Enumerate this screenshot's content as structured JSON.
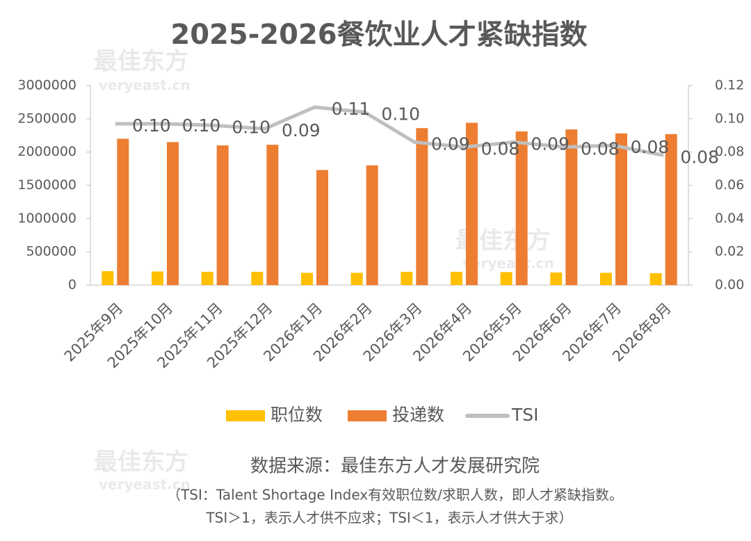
{
  "chart_data": {
    "type": "bar",
    "title": "2025-2026餐饮业人才紧缺指数",
    "watermark": "最佳东方",
    "watermark_url": "veryeast.cn",
    "categories": [
      "2025年9月",
      "2025年10月",
      "2025年11月",
      "2025年12月",
      "2026年1月",
      "2026年2月",
      "2026年3月",
      "2026年4月",
      "2026年5月",
      "2026年6月",
      "2026年7月",
      "2026年8月"
    ],
    "series": [
      {
        "name": "职位数",
        "color": "#ffc000",
        "values": [
          210000,
          205000,
          200000,
          200000,
          185000,
          185000,
          200000,
          200000,
          195000,
          190000,
          185000,
          180000
        ]
      },
      {
        "name": "投递数",
        "color": "#ed7d31",
        "values": [
          2200000,
          2150000,
          2100000,
          2110000,
          1730000,
          1800000,
          2360000,
          2440000,
          2310000,
          2340000,
          2280000,
          2270000
        ]
      },
      {
        "name": "TSI",
        "type": "line",
        "axis": "y2",
        "color": "#bfbfbf",
        "values": [
          0.097,
          0.097,
          0.096,
          0.094,
          0.107,
          0.104,
          0.086,
          0.083,
          0.086,
          0.083,
          0.084,
          0.078
        ],
        "value_labels": [
          "0.10",
          "0.10",
          "0.10",
          "0.09",
          "0.11",
          "0.10",
          "0.09",
          "0.08",
          "0.09",
          "0.08",
          "0.08",
          "0.08"
        ]
      }
    ],
    "ylim": [
      0,
      3000000
    ],
    "yticks": [
      0,
      500000,
      1000000,
      1500000,
      2000000,
      2500000,
      3000000
    ],
    "y2lim": [
      0,
      0.12
    ],
    "y2ticks": [
      {
        "value": 0,
        "label": "0.00"
      },
      {
        "value": 0.02,
        "label": "0.02"
      },
      {
        "value": 0.04,
        "label": "0.04"
      },
      {
        "value": 0.06,
        "label": "0.06"
      },
      {
        "value": 0.08,
        "label": "0.08"
      },
      {
        "value": 0.1,
        "label": "0.10"
      },
      {
        "value": 0.12,
        "label": "0.12"
      }
    ],
    "legend": "bottom",
    "source": "数据来源：最佳东方人才发展研究院",
    "notes": [
      "（TSI：Talent Shortage Index有效职位数/求职人数，即人才紧缺指数。",
      "TSI＞1，表示人才供不应求；TSI＜1，表示人才供大于求）"
    ]
  }
}
